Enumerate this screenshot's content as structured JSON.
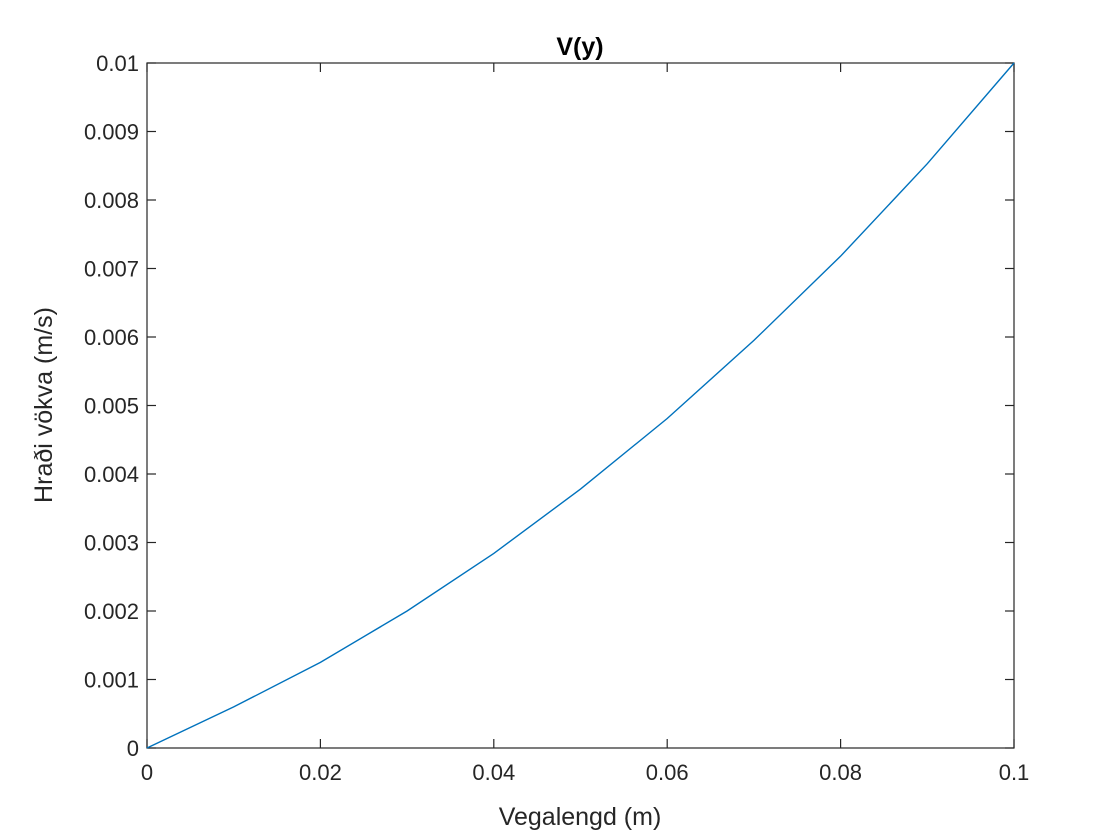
{
  "chart_data": {
    "type": "line",
    "title": "V(y)",
    "xlabel": "Vegalengd (m)",
    "ylabel": "Hraði vökva (m/s)",
    "xlim": [
      0,
      0.1
    ],
    "ylim": [
      0,
      0.01
    ],
    "xticks": [
      "0",
      "0.02",
      "0.04",
      "0.06",
      "0.08",
      "0.1"
    ],
    "yticks": [
      "0",
      "0.001",
      "0.002",
      "0.003",
      "0.004",
      "0.005",
      "0.006",
      "0.007",
      "0.008",
      "0.009",
      "0.01"
    ],
    "grid": false,
    "box": true,
    "line_color": "#0072BD",
    "axis_color": "#262626",
    "series": [
      {
        "x": [
          0,
          0.01,
          0.02,
          0.03,
          0.04,
          0.05,
          0.06,
          0.07,
          0.08,
          0.09,
          0.1
        ],
        "y": [
          0,
          0.0006,
          0.00125,
          0.002,
          0.00284,
          0.00378,
          0.00481,
          0.00595,
          0.00718,
          0.00853,
          0.01
        ]
      }
    ]
  }
}
